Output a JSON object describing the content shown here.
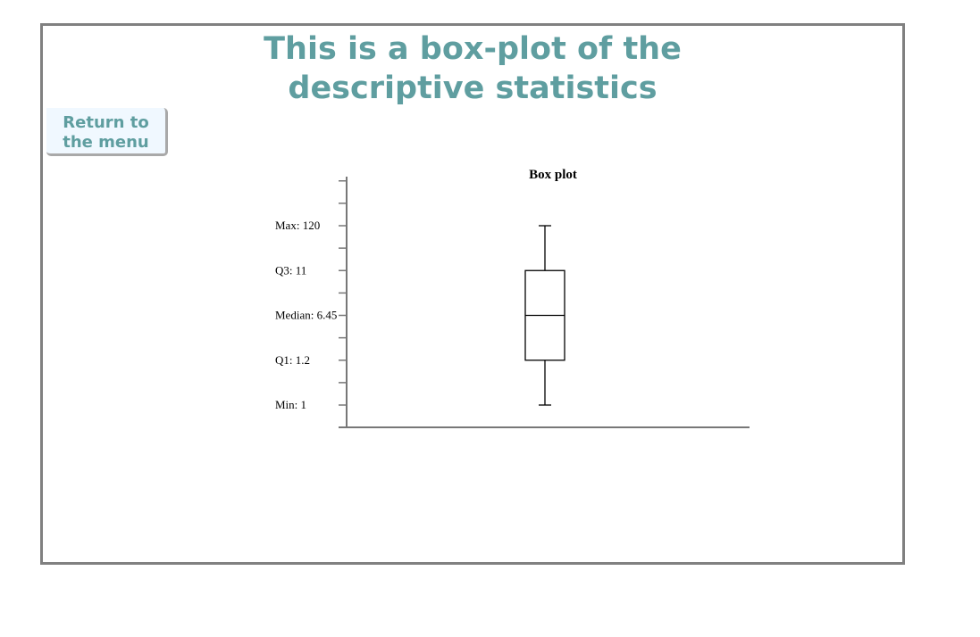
{
  "header": {
    "title_line1": "This is a box-plot of the",
    "title_line2": "descriptive statistics"
  },
  "nav": {
    "return_line1": "Return to",
    "return_line2": "the menu"
  },
  "chart_data": {
    "type": "box",
    "title": "Box plot",
    "stats": {
      "min": 1,
      "q1": 1.2,
      "median": 6.45,
      "q3": 11,
      "max": 120
    },
    "tick_labels": [
      "Min: 1",
      "Q1: 1.2",
      "Median: 6.45",
      "Q3: 11",
      "Max: 120"
    ],
    "xlabel": "",
    "ylabel": "",
    "grid": false,
    "colors": {
      "axis": "#777777",
      "box_stroke": "#000000",
      "box_fill": "#ffffff"
    }
  }
}
